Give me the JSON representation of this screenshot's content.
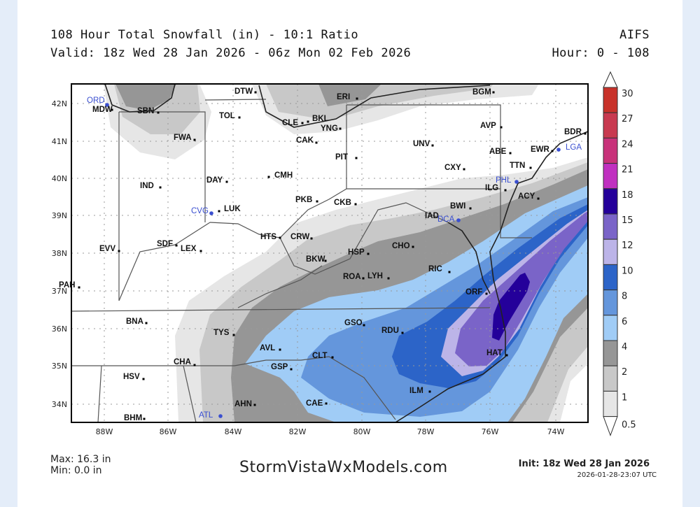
{
  "header": {
    "title": "108 Hour Total Snowfall (in) - 10:1 Ratio",
    "valid": "Valid: 18z Wed 28 Jan 2026 - 06z Mon 02 Feb 2026",
    "model": "AIFS",
    "hours": "Hour: 0 - 108"
  },
  "map": {
    "lon_ticks": [
      "88W",
      "86W",
      "84W",
      "82W",
      "80W",
      "78W",
      "76W",
      "74W"
    ],
    "lat_ticks": [
      "42N",
      "41N",
      "40N",
      "39N",
      "38N",
      "37N",
      "36N",
      "35N",
      "34N"
    ],
    "cities": [
      "ORD",
      "MDW",
      "SBN",
      "DTW",
      "TOL",
      "CLE",
      "BKL",
      "YNG",
      "CAK",
      "ERI",
      "FWA",
      "DAY",
      "CMH",
      "IND",
      "CVG",
      "LUK",
      "PKB",
      "PIT",
      "UNV",
      "CXY",
      "AVP",
      "ABE",
      "BGM",
      "BDR",
      "EWR",
      "LGA",
      "TTN",
      "PHL",
      "ILG",
      "ACY",
      "CKB",
      "BWI",
      "IAD",
      "DCA",
      "HTS",
      "CRW",
      "EVV",
      "SDF",
      "LEX",
      "BKW",
      "HSP",
      "CHO",
      "ROA",
      "LYH",
      "RIC",
      "ORF",
      "PAH",
      "BNA",
      "TYS",
      "GSO",
      "RDU",
      "AVL",
      "CLT",
      "HAT",
      "CHA",
      "GSP",
      "HSV",
      "ILM",
      "AHN",
      "CAE",
      "BHM",
      "ATL"
    ],
    "highlighted_cities": [
      "ORD",
      "CVG",
      "LGA",
      "PHL",
      "DCA",
      "ATL"
    ],
    "highlight_color": "#3a4fd0"
  },
  "colorbar": {
    "labels": [
      "30",
      "27",
      "24",
      "21",
      "18",
      "15",
      "12",
      "10",
      "8",
      "6",
      "4",
      "2",
      "1",
      "0.5"
    ],
    "colors": [
      "#c8322a",
      "#c83a50",
      "#c8327a",
      "#c030c0",
      "#24009a",
      "#7a64c8",
      "#bcb4e8",
      "#2c64c8",
      "#6496dc",
      "#a0ccf6",
      "#969696",
      "#c8c8c8",
      "#e6e6e6"
    ]
  },
  "footer": {
    "max": "Max: 16.3 in",
    "min": "Min: 0.0 in",
    "site": "StormVistaWxModels.com",
    "init": "Init: 18z Wed 28 Jan 2026",
    "timestamp": "2026-01-28-23:07 UTC"
  }
}
